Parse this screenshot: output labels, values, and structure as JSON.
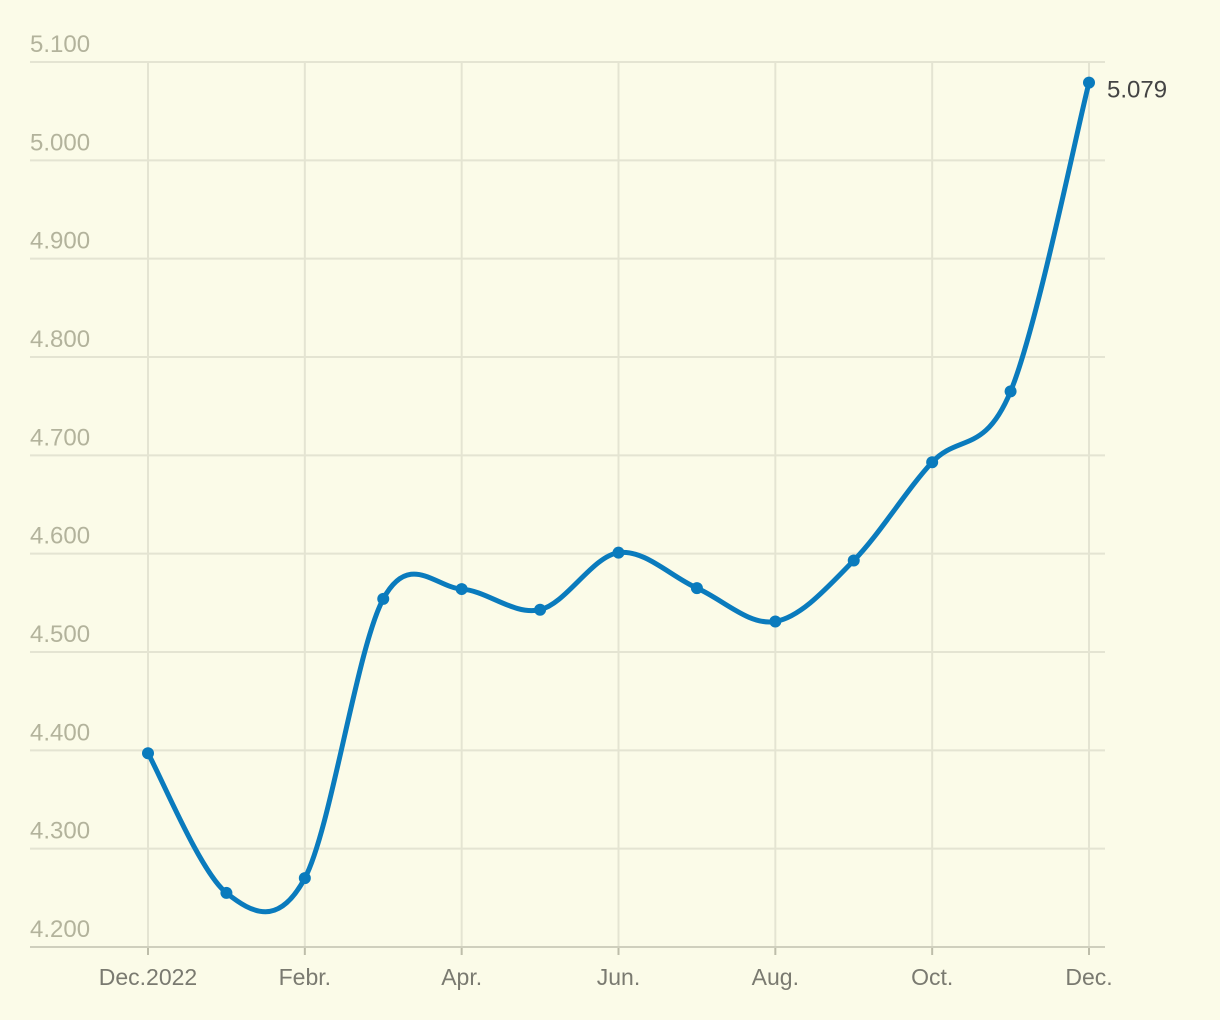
{
  "chart_data": {
    "type": "line",
    "categories": [
      "Dec.2022",
      null,
      "Febr.",
      null,
      "Apr.",
      null,
      "Jun.",
      null,
      "Aug.",
      null,
      "Oct.",
      null,
      "Dec."
    ],
    "values": [
      4397,
      4255,
      4270,
      4554,
      4564,
      4543,
      4601,
      4565,
      4531,
      4593,
      4693,
      4765,
      5079
    ],
    "value_labels": [
      null,
      null,
      null,
      null,
      null,
      null,
      null,
      null,
      null,
      null,
      null,
      null,
      "5.079"
    ],
    "color": "#0a7bbd",
    "ylim": [
      4200,
      5100
    ],
    "yticks": [
      {
        "value": 4200,
        "label": "4.200"
      },
      {
        "value": 4300,
        "label": "4.300"
      },
      {
        "value": 4400,
        "label": "4.400"
      },
      {
        "value": 4500,
        "label": "4.500"
      },
      {
        "value": 4600,
        "label": "4.600"
      },
      {
        "value": 4700,
        "label": "4.700"
      },
      {
        "value": 4800,
        "label": "4.800"
      },
      {
        "value": 4900,
        "label": "4.900"
      },
      {
        "value": 5000,
        "label": "5.000"
      },
      {
        "value": 5100,
        "label": "5.100"
      }
    ],
    "grid": true
  }
}
